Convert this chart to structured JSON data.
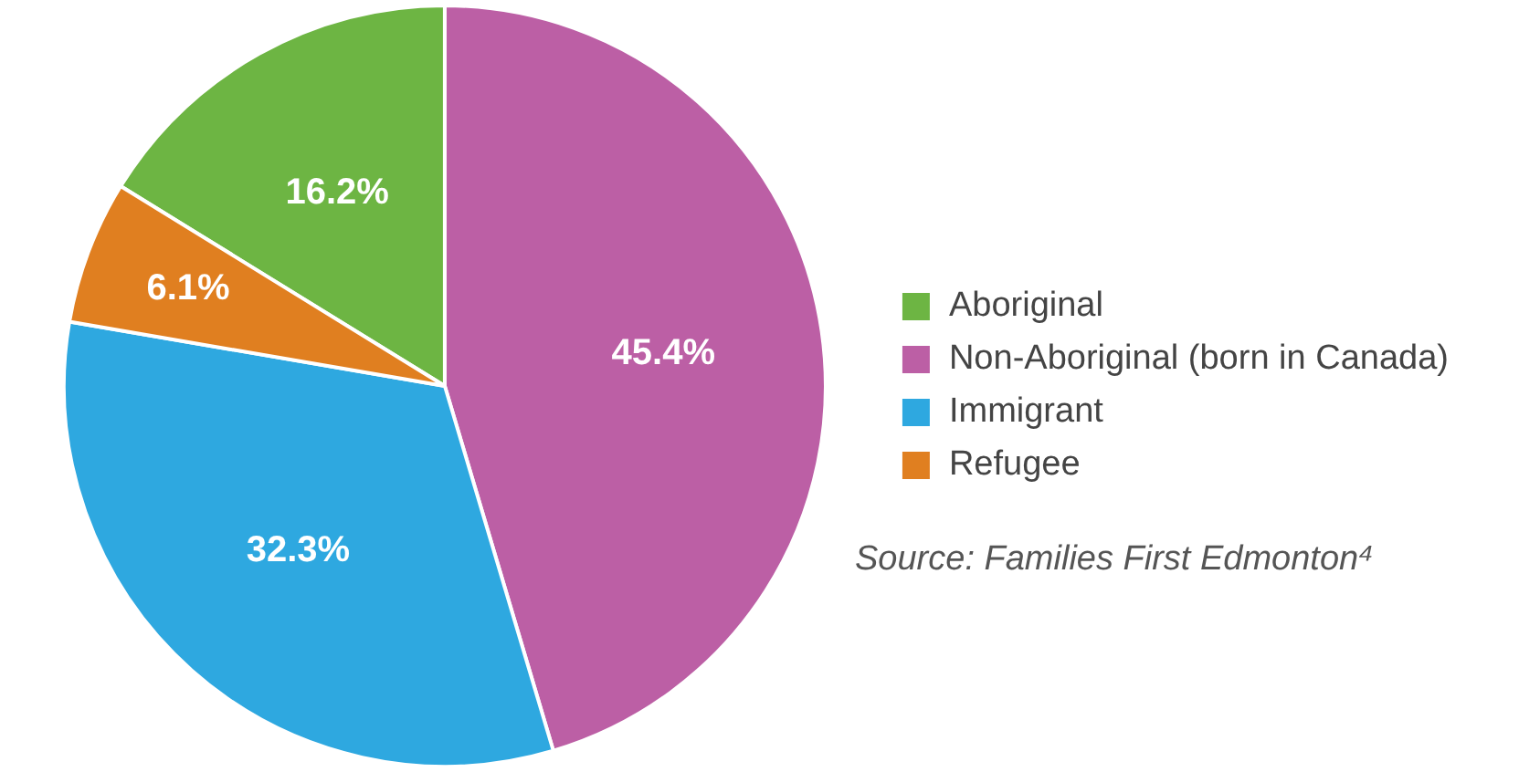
{
  "chart_data": {
    "type": "pie",
    "categories": [
      "Aboriginal",
      "Non-Aboriginal (born in Canada)",
      "Immigrant",
      "Refugee"
    ],
    "values": [
      16.2,
      45.4,
      32.3,
      6.1
    ],
    "colors": [
      "#6db543",
      "#bc5fa5",
      "#2ea8e0",
      "#e07f20"
    ],
    "value_labels": [
      "16.2%",
      "45.4%",
      "32.3%",
      "6.1%"
    ],
    "legend": "right",
    "annotations": [
      "Source: Families First Edmonton⁴"
    ]
  }
}
